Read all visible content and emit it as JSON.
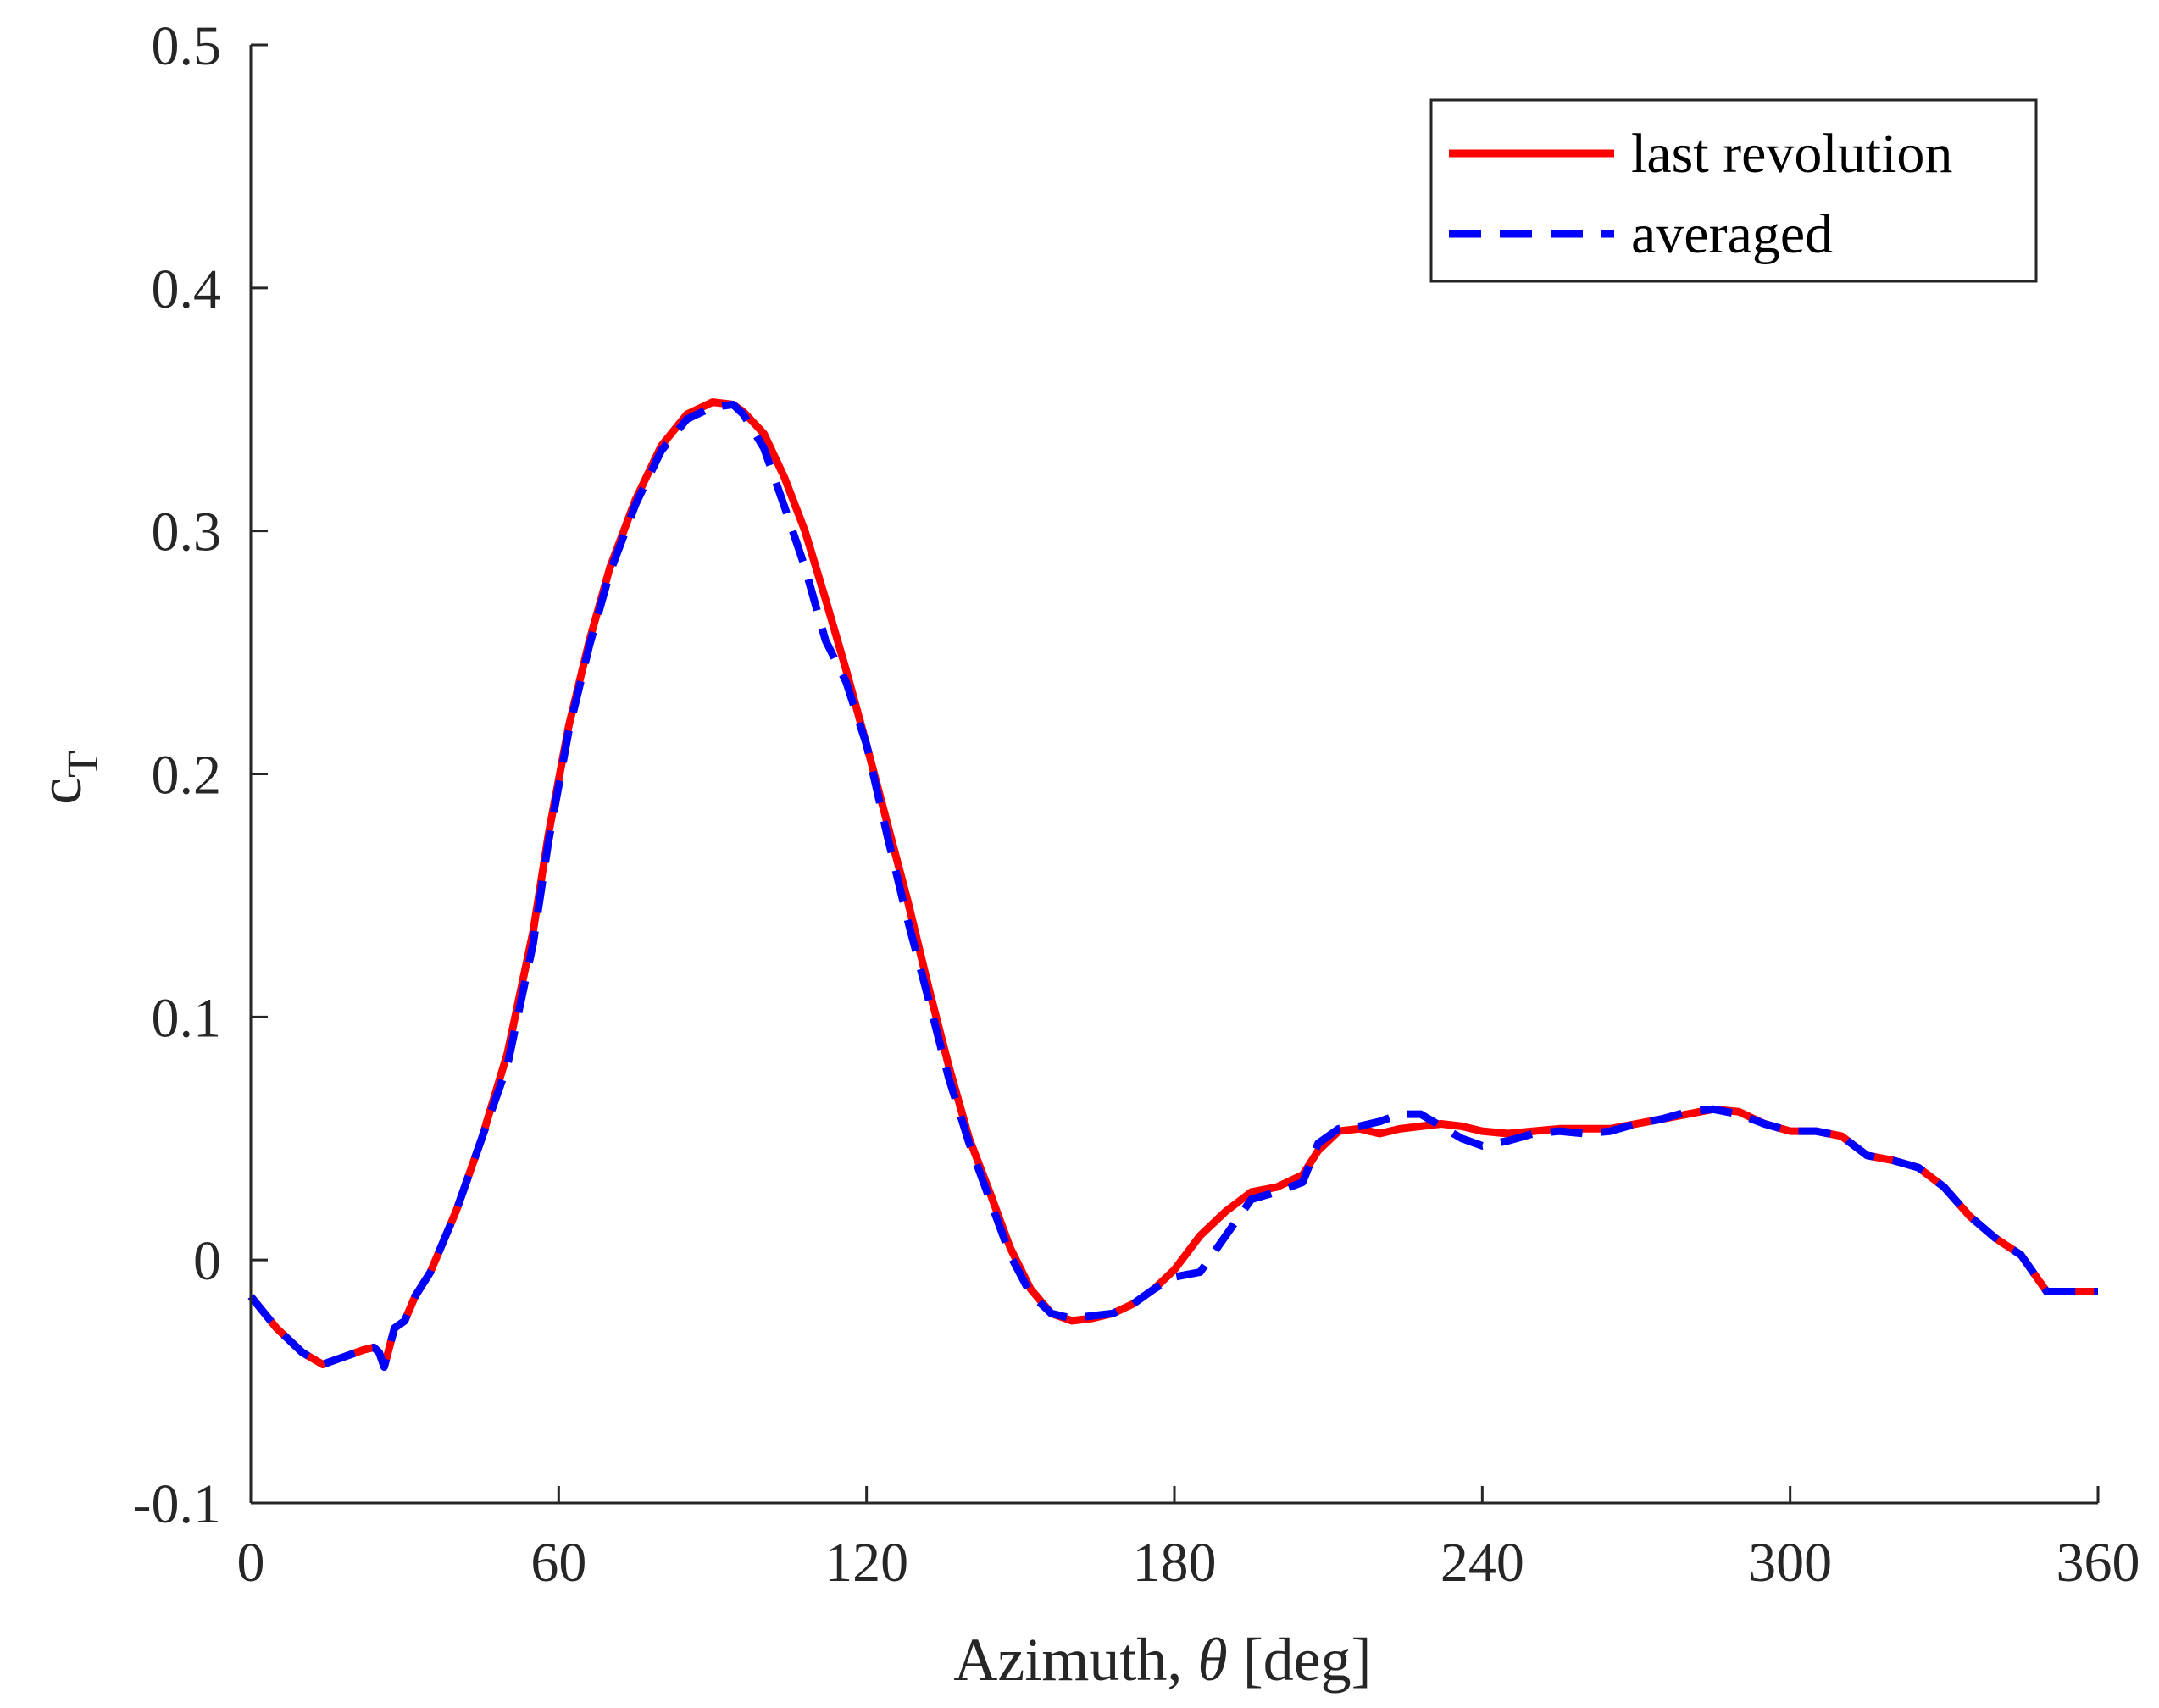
{
  "chart_data": {
    "type": "line",
    "title": "",
    "xlabel": "Azimuth, θ [deg]",
    "xlabel_parts": {
      "prefix": "Azimuth, ",
      "symbol": "θ",
      "suffix": " [deg]"
    },
    "ylabel": "cT",
    "ylabel_parts": {
      "base": "c",
      "sub": "T"
    },
    "xlim": [
      0,
      360
    ],
    "ylim": [
      -0.1,
      0.5
    ],
    "xticks": [
      0,
      60,
      120,
      180,
      240,
      300,
      360
    ],
    "xtick_labels": [
      "0",
      "60",
      "120",
      "180",
      "240",
      "300",
      "360"
    ],
    "yticks": [
      -0.1,
      0,
      0.1,
      0.2,
      0.3,
      0.4,
      0.5
    ],
    "ytick_labels": [
      "-0.1",
      "0",
      "0.1",
      "0.2",
      "0.3",
      "0.4",
      "0.5"
    ],
    "grid": false,
    "legend_position": "top-right",
    "series": [
      {
        "name": "last revolution",
        "color": "#ff0000",
        "style": "solid",
        "x": [
          0,
          5,
          10,
          14,
          18,
          22,
          24,
          25,
          26,
          28,
          30,
          32,
          35,
          40,
          45,
          50,
          52,
          55,
          58,
          62,
          66,
          70,
          75,
          80,
          85,
          90,
          94,
          96,
          100,
          104,
          108,
          112,
          116,
          120,
          124,
          128,
          132,
          136,
          140,
          144,
          148,
          152,
          156,
          160,
          164,
          168,
          172,
          176,
          180,
          185,
          190,
          195,
          200,
          205,
          208,
          212,
          216,
          220,
          224,
          228,
          232,
          236,
          240,
          245,
          250,
          255,
          260,
          265,
          270,
          275,
          280,
          285,
          290,
          295,
          300,
          305,
          310,
          315,
          320,
          325,
          330,
          335,
          340,
          345,
          350,
          355,
          360
        ],
        "values": [
          -0.015,
          -0.028,
          -0.038,
          -0.043,
          -0.04,
          -0.037,
          -0.036,
          -0.038,
          -0.044,
          -0.028,
          -0.025,
          -0.015,
          -0.005,
          0.02,
          0.05,
          0.085,
          0.105,
          0.135,
          0.175,
          0.22,
          0.255,
          0.285,
          0.313,
          0.335,
          0.348,
          0.353,
          0.352,
          0.349,
          0.34,
          0.322,
          0.3,
          0.272,
          0.243,
          0.212,
          0.18,
          0.148,
          0.113,
          0.08,
          0.05,
          0.028,
          0.005,
          -0.012,
          -0.022,
          -0.025,
          -0.024,
          -0.022,
          -0.018,
          -0.012,
          -0.004,
          0.01,
          0.02,
          0.028,
          0.03,
          0.035,
          0.045,
          0.053,
          0.054,
          0.052,
          0.054,
          0.055,
          0.056,
          0.055,
          0.053,
          0.052,
          0.053,
          0.054,
          0.054,
          0.054,
          0.056,
          0.058,
          0.06,
          0.062,
          0.061,
          0.056,
          0.053,
          0.053,
          0.051,
          0.043,
          0.041,
          0.038,
          0.03,
          0.018,
          0.009,
          0.002,
          -0.013,
          -0.013,
          -0.013
        ]
      },
      {
        "name": "averaged",
        "color": "#0000ff",
        "style": "dashed",
        "x": [
          0,
          5,
          10,
          14,
          18,
          22,
          24,
          25,
          26,
          28,
          30,
          32,
          35,
          40,
          45,
          50,
          52,
          55,
          58,
          62,
          66,
          70,
          75,
          80,
          85,
          90,
          94,
          96,
          100,
          104,
          108,
          112,
          116,
          120,
          124,
          128,
          132,
          136,
          140,
          144,
          148,
          152,
          156,
          160,
          164,
          168,
          172,
          176,
          180,
          185,
          190,
          195,
          200,
          205,
          208,
          212,
          216,
          220,
          224,
          228,
          232,
          236,
          240,
          245,
          250,
          255,
          260,
          265,
          270,
          275,
          280,
          285,
          290,
          295,
          300,
          305,
          310,
          315,
          320,
          325,
          330,
          335,
          340,
          345,
          350,
          355,
          360
        ],
        "values": [
          -0.015,
          -0.028,
          -0.038,
          -0.043,
          -0.04,
          -0.037,
          -0.036,
          -0.038,
          -0.044,
          -0.028,
          -0.025,
          -0.015,
          -0.005,
          0.02,
          0.05,
          0.08,
          0.1,
          0.13,
          0.172,
          0.218,
          0.253,
          0.283,
          0.311,
          0.333,
          0.346,
          0.351,
          0.352,
          0.348,
          0.334,
          0.31,
          0.285,
          0.255,
          0.238,
          0.212,
          0.175,
          0.14,
          0.108,
          0.075,
          0.048,
          0.025,
          0.002,
          -0.014,
          -0.022,
          -0.024,
          -0.023,
          -0.022,
          -0.018,
          -0.012,
          -0.007,
          -0.005,
          0.01,
          0.025,
          0.028,
          0.032,
          0.048,
          0.054,
          0.055,
          0.057,
          0.06,
          0.06,
          0.055,
          0.05,
          0.047,
          0.049,
          0.052,
          0.053,
          0.052,
          0.053,
          0.056,
          0.058,
          0.061,
          0.062,
          0.06,
          0.056,
          0.053,
          0.053,
          0.051,
          0.043,
          0.041,
          0.038,
          0.03,
          0.018,
          0.009,
          0.002,
          -0.013,
          -0.013,
          -0.013
        ]
      }
    ]
  }
}
